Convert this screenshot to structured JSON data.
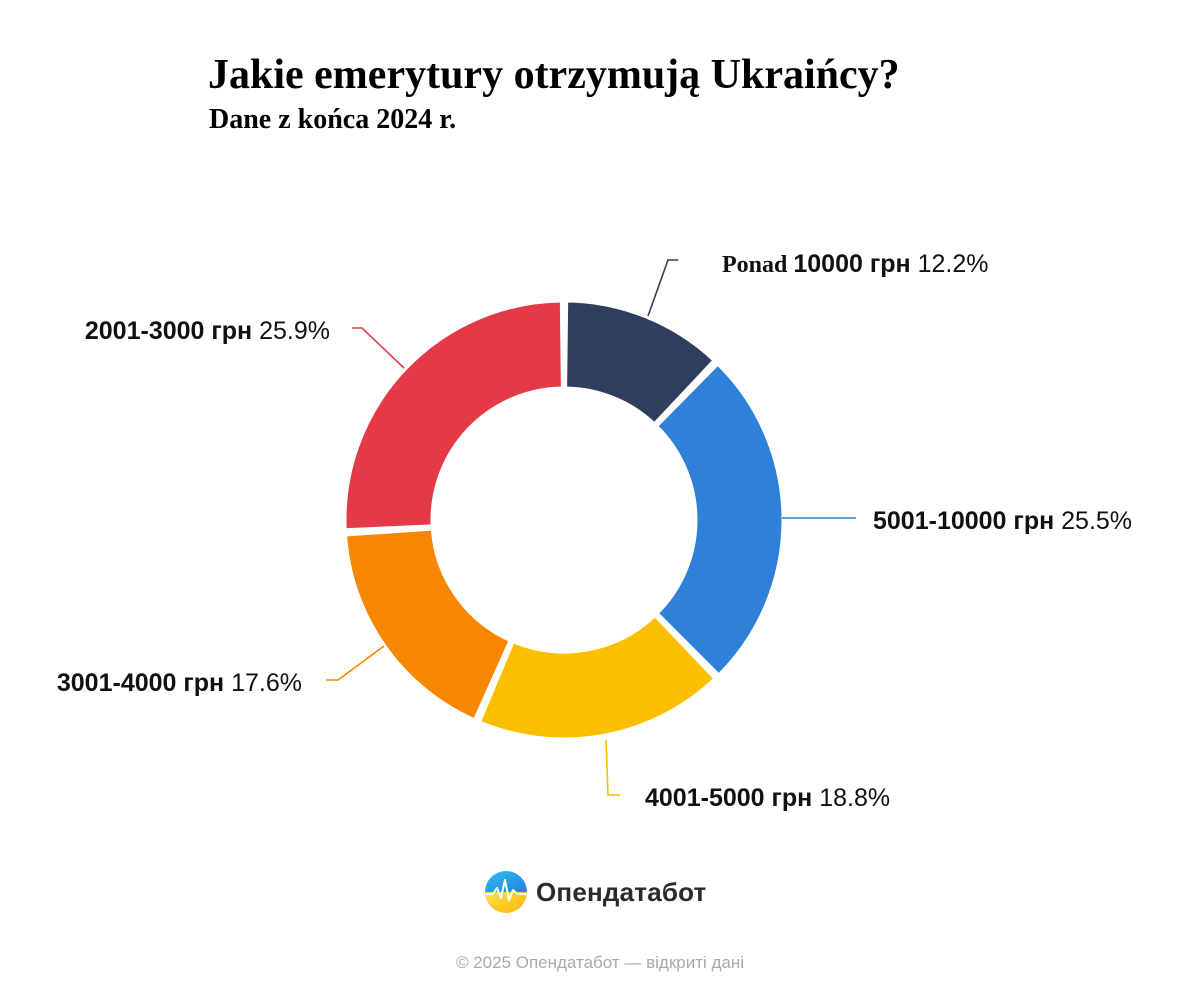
{
  "chart_data": {
    "type": "pie",
    "variant": "donut",
    "title": "Jakie emerytury otrzymują Ukraińcy?",
    "subtitle": "Dane z końca 2024 r.",
    "slices": [
      {
        "prefix": "Ponad",
        "label": "10000 грн",
        "value": 12.2,
        "value_label": "12.2%",
        "color": "#2e3e5c"
      },
      {
        "prefix": "",
        "label": "5001-10000 грн",
        "value": 25.5,
        "value_label": "25.5%",
        "color": "#2f80d8"
      },
      {
        "prefix": "",
        "label": "4001-5000 грн",
        "value": 18.8,
        "value_label": "18.8%",
        "color": "#fbbf00"
      },
      {
        "prefix": "",
        "label": "3001-4000 грн",
        "value": 17.6,
        "value_label": "17.6%",
        "color": "#f78600"
      },
      {
        "prefix": "",
        "label": "2001-3000 грн",
        "value": 25.9,
        "value_label": "25.9%",
        "color": "#e43a47"
      }
    ],
    "legend": "none"
  },
  "brand": {
    "name": "Опендатабот",
    "logo_icon": "opendatabot-logo-icon"
  },
  "footer": {
    "text": "© 2025 Опендатабот — відкриті дані"
  }
}
